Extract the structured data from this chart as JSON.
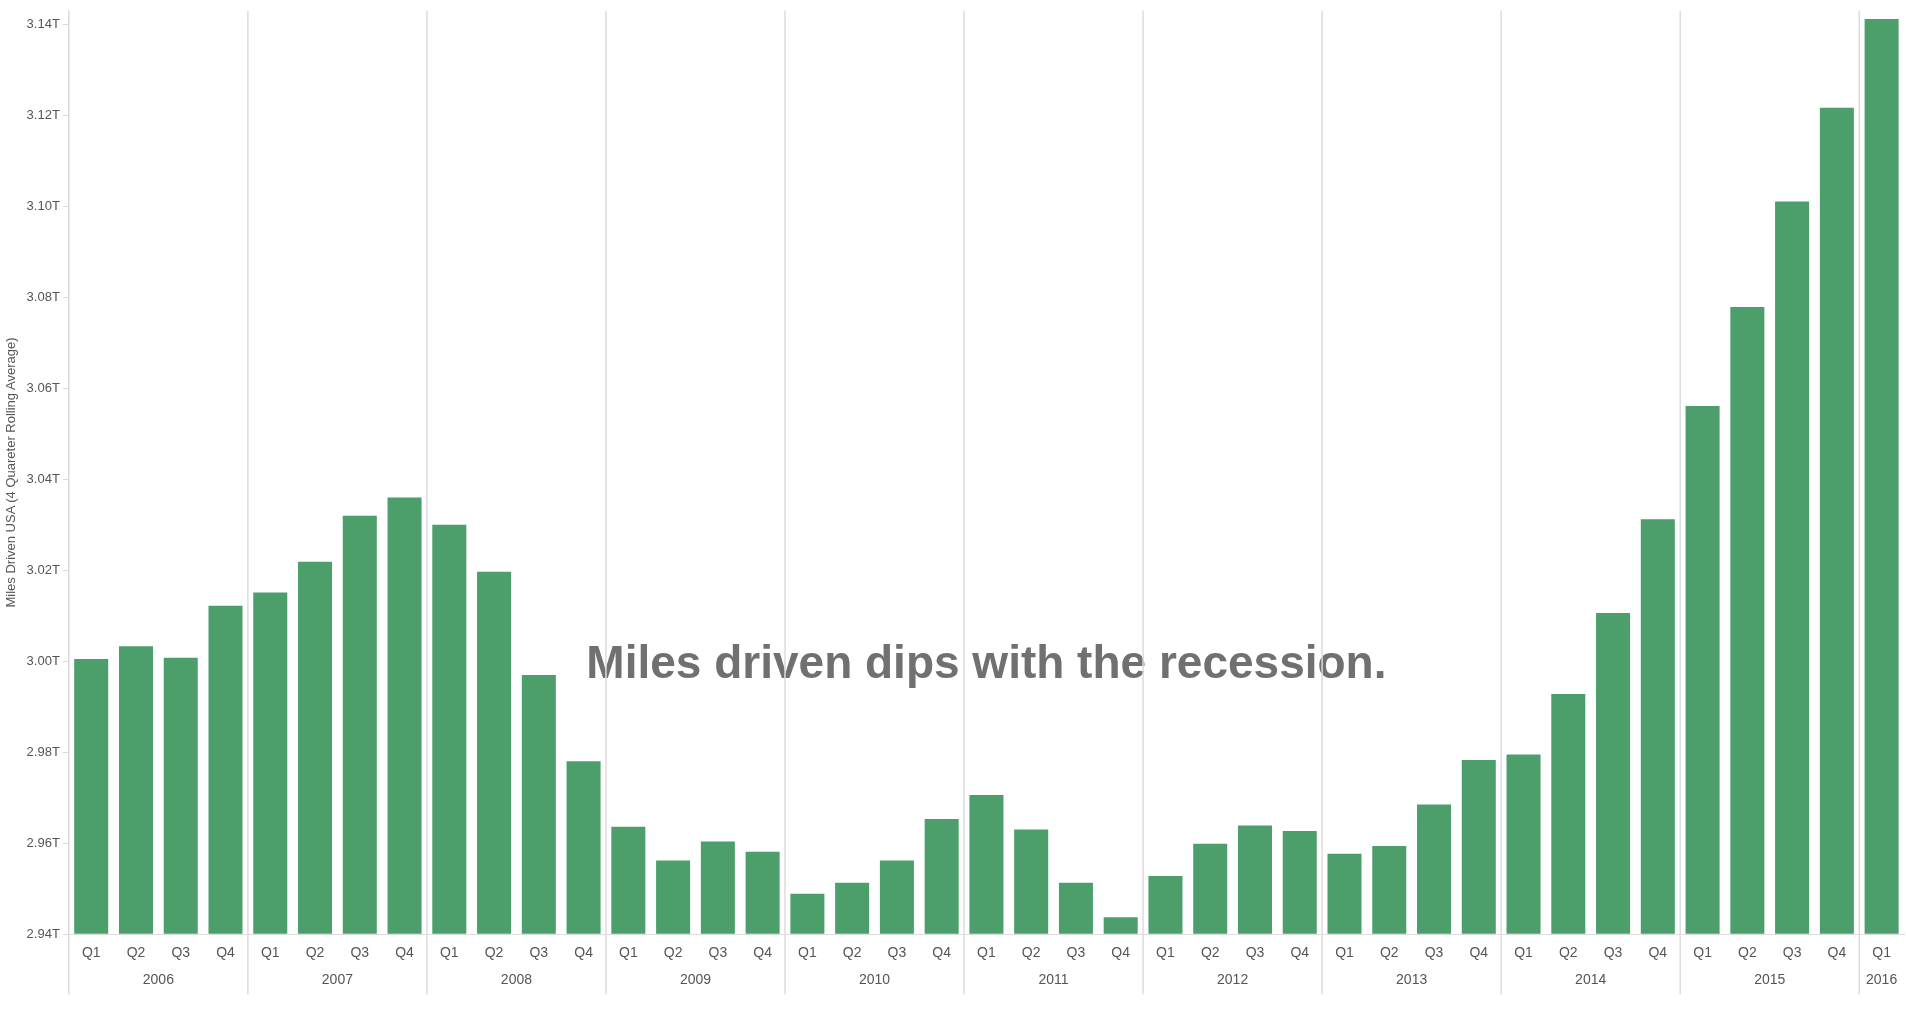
{
  "chart_data": {
    "type": "bar",
    "ylabel": "Miles Driven USA (4 Quareter Rolling Average)",
    "categories": [
      "Q1",
      "Q2",
      "Q3",
      "Q4",
      "Q1",
      "Q2",
      "Q3",
      "Q4",
      "Q1",
      "Q2",
      "Q3",
      "Q4",
      "Q1",
      "Q2",
      "Q3",
      "Q4",
      "Q1",
      "Q2",
      "Q3",
      "Q4",
      "Q1",
      "Q2",
      "Q3",
      "Q4",
      "Q1",
      "Q2",
      "Q3",
      "Q4",
      "Q1",
      "Q2",
      "Q3",
      "Q4",
      "Q1",
      "Q2",
      "Q3",
      "Q4",
      "Q1",
      "Q2",
      "Q3",
      "Q4",
      "Q1"
    ],
    "values": [
      3.0005,
      3.0033,
      3.0008,
      3.0122,
      3.0151,
      3.0219,
      3.032,
      3.036,
      3.03,
      3.0197,
      2.997,
      2.978,
      2.9636,
      2.9562,
      2.9604,
      2.9581,
      2.9489,
      2.9513,
      2.9562,
      2.9653,
      2.9706,
      2.963,
      2.9513,
      2.9437,
      2.9528,
      2.9599,
      2.9639,
      2.9627,
      2.9577,
      2.9594,
      2.9685,
      2.9783,
      2.9795,
      2.9928,
      3.0106,
      3.0312,
      3.0561,
      3.0779,
      3.1011,
      3.1217,
      3.1412
    ],
    "color": "#4c9e6b",
    "ylim": [
      2.94,
      3.143
    ],
    "yticks": [
      {
        "value": 2.94,
        "label": "2.94T"
      },
      {
        "value": 2.96,
        "label": "2.96T"
      },
      {
        "value": 2.98,
        "label": "2.98T"
      },
      {
        "value": 3.0,
        "label": "3.00T"
      },
      {
        "value": 3.02,
        "label": "3.02T"
      },
      {
        "value": 3.04,
        "label": "3.04T"
      },
      {
        "value": 3.06,
        "label": "3.06T"
      },
      {
        "value": 3.08,
        "label": "3.08T"
      },
      {
        "value": 3.1,
        "label": "3.10T"
      },
      {
        "value": 3.12,
        "label": "3.12T"
      },
      {
        "value": 3.14,
        "label": "3.14T"
      }
    ],
    "annotations": [
      "Miles driven dips with the recession.",
      "2006",
      "2007",
      "2008",
      "2009",
      "2010",
      "2011",
      "2012",
      "2013",
      "2014",
      "2015",
      "2016"
    ],
    "legend": false,
    "grid": false
  }
}
